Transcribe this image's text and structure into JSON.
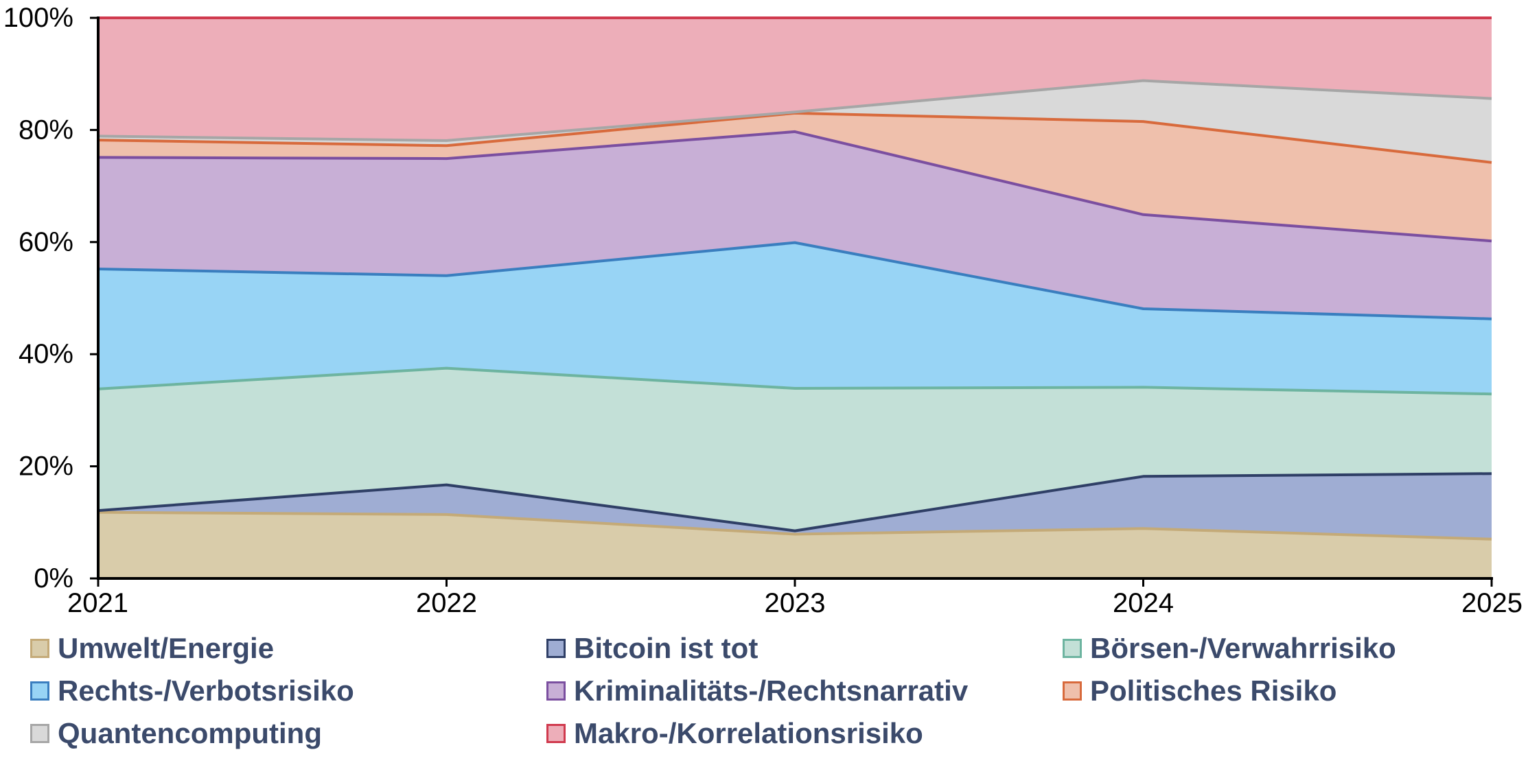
{
  "chart_data": {
    "type": "area",
    "stacked": true,
    "percent": true,
    "title": "",
    "xlabel": "",
    "ylabel": "",
    "x": [
      "2021",
      "2022",
      "2023",
      "2024",
      "2025"
    ],
    "ylim": [
      0,
      100
    ],
    "yticks": [
      "0%",
      "20%",
      "40%",
      "60%",
      "80%",
      "100%"
    ],
    "grid": false,
    "legend_position": "bottom",
    "series": [
      {
        "name": "Umwelt/Energie",
        "values": [
          11.8,
          11.4,
          7.9,
          8.9,
          7.0
        ],
        "fill": "#d9ccaa",
        "line": "#c4aa78"
      },
      {
        "name": "Bitcoin ist tot",
        "values": [
          0.3,
          5.3,
          0.6,
          9.3,
          11.7
        ],
        "fill": "#9fadd3",
        "line": "#2f3f66"
      },
      {
        "name": "Börsen-/Verwahrrisiko",
        "values": [
          21.7,
          20.8,
          25.4,
          15.9,
          14.2
        ],
        "fill": "#c3e0d7",
        "line": "#6db4a0"
      },
      {
        "name": "Rechts-/Verbotsrisiko",
        "values": [
          21.4,
          16.5,
          26.0,
          14.0,
          13.4
        ],
        "fill": "#98d4f5",
        "line": "#3a7ebf"
      },
      {
        "name": "Kriminalitäts-/Rechtsnarrativ",
        "values": [
          19.9,
          20.9,
          19.8,
          16.8,
          13.9
        ],
        "fill": "#c8afd6",
        "line": "#7b4fa0"
      },
      {
        "name": "Politisches Risiko",
        "values": [
          3.1,
          2.3,
          3.3,
          16.6,
          14.0
        ],
        "fill": "#efc0ac",
        "line": "#d86a3c"
      },
      {
        "name": "Quantencomputing",
        "values": [
          0.7,
          0.9,
          0.2,
          7.3,
          11.4
        ],
        "fill": "#d9d9d9",
        "line": "#a6a6a6"
      },
      {
        "name": "Makro-/Korrelationsrisiko",
        "values": [
          21.1,
          21.9,
          16.8,
          11.2,
          14.4
        ],
        "fill": "#edaeb9",
        "line": "#d03a4e"
      }
    ]
  }
}
